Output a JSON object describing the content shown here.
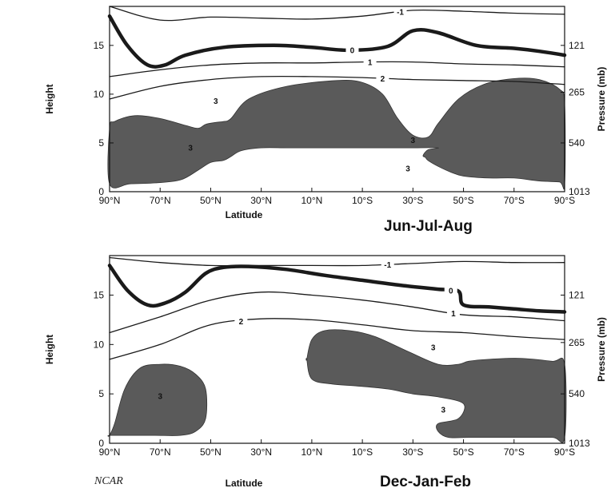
{
  "colors": {
    "shade": "#5a5a5a",
    "contour": "#1a1a1a",
    "background": "#ffffff"
  },
  "credit": "NCAR",
  "chart_data": [
    {
      "type": "contour",
      "season_label": "Jun-Jul-Aug",
      "xlabel": "Latitude",
      "ylabel": "Height",
      "y2label": "Pressure (mb)",
      "x_ticks": [
        "90°N",
        "70°N",
        "50°N",
        "30°N",
        "10°N",
        "10°S",
        "30°S",
        "50°S",
        "70°S",
        "90°S"
      ],
      "y_ticks": [
        "0",
        "5",
        "10",
        "15"
      ],
      "y2_ticks": [
        "121",
        "265",
        "540",
        "1013"
      ],
      "ylim": [
        0,
        19
      ],
      "contours": [
        {
          "label": "-1",
          "heavy": false,
          "lat": [
            -90,
            -70,
            -50,
            -30,
            -10,
            10,
            30,
            50,
            70,
            90
          ],
          "height": [
            19.0,
            17.6,
            17.9,
            17.8,
            17.7,
            18.0,
            18.6,
            18.5,
            18.3,
            18.2
          ],
          "label_lat": 25
        },
        {
          "label": "0",
          "heavy": true,
          "lat": [
            -90,
            -83,
            -75,
            -68,
            -60,
            -45,
            -25,
            -10,
            5,
            20,
            30,
            40,
            55,
            70,
            80,
            90
          ],
          "height": [
            18.0,
            15.0,
            13.0,
            13.0,
            14.0,
            14.8,
            15.0,
            14.8,
            14.5,
            14.9,
            16.5,
            16.3,
            15.0,
            14.7,
            14.4,
            14.0
          ],
          "label_lat": 6
        },
        {
          "label": "1",
          "heavy": false,
          "lat": [
            -90,
            -70,
            -50,
            -30,
            -10,
            10,
            30,
            50,
            70,
            90
          ],
          "height": [
            11.8,
            12.5,
            13.0,
            13.2,
            13.2,
            13.3,
            13.3,
            13.1,
            13.0,
            12.8
          ],
          "label_lat": 13
        },
        {
          "label": "2",
          "heavy": false,
          "lat": [
            -90,
            -70,
            -50,
            -30,
            -10,
            10,
            30,
            50,
            70,
            90
          ],
          "height": [
            9.5,
            10.8,
            11.5,
            11.8,
            11.8,
            11.7,
            11.5,
            11.4,
            11.3,
            11.0
          ],
          "label_lat": 18
        }
      ],
      "shaded_regions": [
        {
          "label": "3",
          "lat": [
            -90,
            -88,
            -80,
            -70,
            -60,
            -55,
            -52,
            -48,
            -45,
            -42,
            -35,
            -20,
            0,
            10,
            18,
            24,
            30,
            36,
            40,
            48,
            58,
            70,
            80,
            88,
            90,
            90,
            88,
            80,
            70,
            60,
            50,
            45,
            40,
            36,
            35,
            34,
            36,
            40,
            30,
            20,
            10,
            0,
            -10,
            -20,
            -30,
            -38,
            -42,
            -45,
            -50,
            -55,
            -62,
            -72,
            -82,
            -90
          ],
          "height": [
            6.5,
            7.2,
            7.8,
            7.5,
            6.8,
            6.5,
            6.9,
            7.1,
            7.2,
            7.5,
            9.5,
            10.8,
            11.4,
            11.2,
            10.0,
            7.5,
            5.8,
            5.6,
            7.0,
            9.5,
            11.0,
            11.6,
            11.5,
            10.5,
            9.0,
            0.8,
            1.0,
            1.1,
            1.4,
            1.4,
            1.6,
            2.0,
            2.6,
            3.2,
            3.5,
            3.7,
            4.3,
            4.5,
            4.5,
            4.5,
            4.5,
            4.5,
            4.5,
            4.5,
            4.5,
            4.2,
            3.6,
            3.2,
            3.0,
            2.2,
            1.2,
            0.9,
            0.8,
            0.8
          ],
          "label_lat": 30,
          "label_height": 5.0
        }
      ],
      "extra_labels": [
        {
          "text": "3",
          "lat": -48,
          "height": 9.0
        },
        {
          "text": "3",
          "lat": -58,
          "height": 4.2
        },
        {
          "text": "3",
          "lat": 28,
          "height": 2.1
        }
      ]
    },
    {
      "type": "contour",
      "season_label": "Dec-Jan-Feb",
      "xlabel": "Latitude",
      "ylabel": "Height",
      "y2label": "Pressure (mb)",
      "x_ticks": [
        "90°N",
        "70°N",
        "50°N",
        "30°N",
        "10°N",
        "10°S",
        "30°S",
        "50°S",
        "70°S",
        "90°S"
      ],
      "y_ticks": [
        "0",
        "5",
        "10",
        "15"
      ],
      "y2_ticks": [
        "121",
        "265",
        "540",
        "1013"
      ],
      "ylim": [
        0,
        19
      ],
      "contours": [
        {
          "label": "-1",
          "heavy": false,
          "lat": [
            -90,
            -70,
            -50,
            -30,
            -10,
            10,
            30,
            50,
            70,
            90
          ],
          "height": [
            18.8,
            18.3,
            18.0,
            18.0,
            18.0,
            18.0,
            18.2,
            18.4,
            18.3,
            18.3
          ],
          "label_lat": 20
        },
        {
          "label": "0",
          "heavy": true,
          "lat": [
            -90,
            -83,
            -75,
            -68,
            -60,
            -52,
            -45,
            -35,
            -20,
            -5,
            10,
            25,
            40,
            48,
            50,
            60,
            70,
            80,
            90
          ],
          "height": [
            18.0,
            15.5,
            14.0,
            14.2,
            15.3,
            17.2,
            17.8,
            17.9,
            17.6,
            17.0,
            16.5,
            16.0,
            15.6,
            15.4,
            14.0,
            13.8,
            13.6,
            13.4,
            13.3
          ],
          "label_lat": 45
        },
        {
          "label": "1",
          "heavy": false,
          "lat": [
            -90,
            -70,
            -50,
            -30,
            -10,
            10,
            30,
            50,
            70,
            90
          ],
          "height": [
            11.2,
            12.8,
            14.5,
            15.3,
            15.0,
            14.5,
            13.8,
            13.0,
            12.8,
            12.4
          ],
          "label_lat": 46
        },
        {
          "label": "2",
          "heavy": false,
          "lat": [
            -90,
            -70,
            -50,
            -30,
            -10,
            10,
            30,
            50,
            70,
            90
          ],
          "height": [
            8.5,
            10.0,
            12.0,
            12.6,
            12.5,
            12.0,
            11.4,
            11.2,
            10.8,
            10.5
          ],
          "label_lat": -38
        }
      ],
      "shaded_regions": [
        {
          "label": "3",
          "lat": [
            -90,
            -88,
            -84,
            -78,
            -70,
            -62,
            -56,
            -52,
            -52,
            -56,
            -62,
            -72,
            -82,
            -90
          ],
          "height": [
            0.8,
            2.0,
            5.5,
            7.6,
            8.0,
            7.8,
            7.0,
            5.5,
            2.5,
            1.2,
            0.8,
            0.8,
            0.8,
            0.8
          ],
          "label_lat": -70,
          "label_height": 4.5
        },
        {
          "label": "3",
          "lat": [
            -12,
            -10,
            -5,
            5,
            15,
            28,
            40,
            48,
            52,
            60,
            72,
            85,
            90,
            90,
            85,
            70,
            60,
            52,
            44,
            40,
            40,
            48,
            50,
            40,
            30,
            20,
            8,
            -2,
            -10,
            -12
          ],
          "height": [
            8.5,
            10.5,
            11.4,
            11.4,
            10.8,
            9.3,
            8.0,
            8.0,
            8.3,
            8.5,
            8.6,
            8.3,
            8.0,
            0.6,
            0.6,
            0.6,
            0.6,
            0.6,
            0.6,
            1.2,
            2.0,
            2.5,
            4.0,
            4.7,
            5.0,
            5.5,
            5.8,
            6.0,
            6.5,
            8.5
          ],
          "label_lat": 38,
          "label_height": 9.4
        }
      ],
      "extra_labels": [
        {
          "text": "3",
          "lat": 42,
          "height": 3.1
        }
      ]
    }
  ]
}
